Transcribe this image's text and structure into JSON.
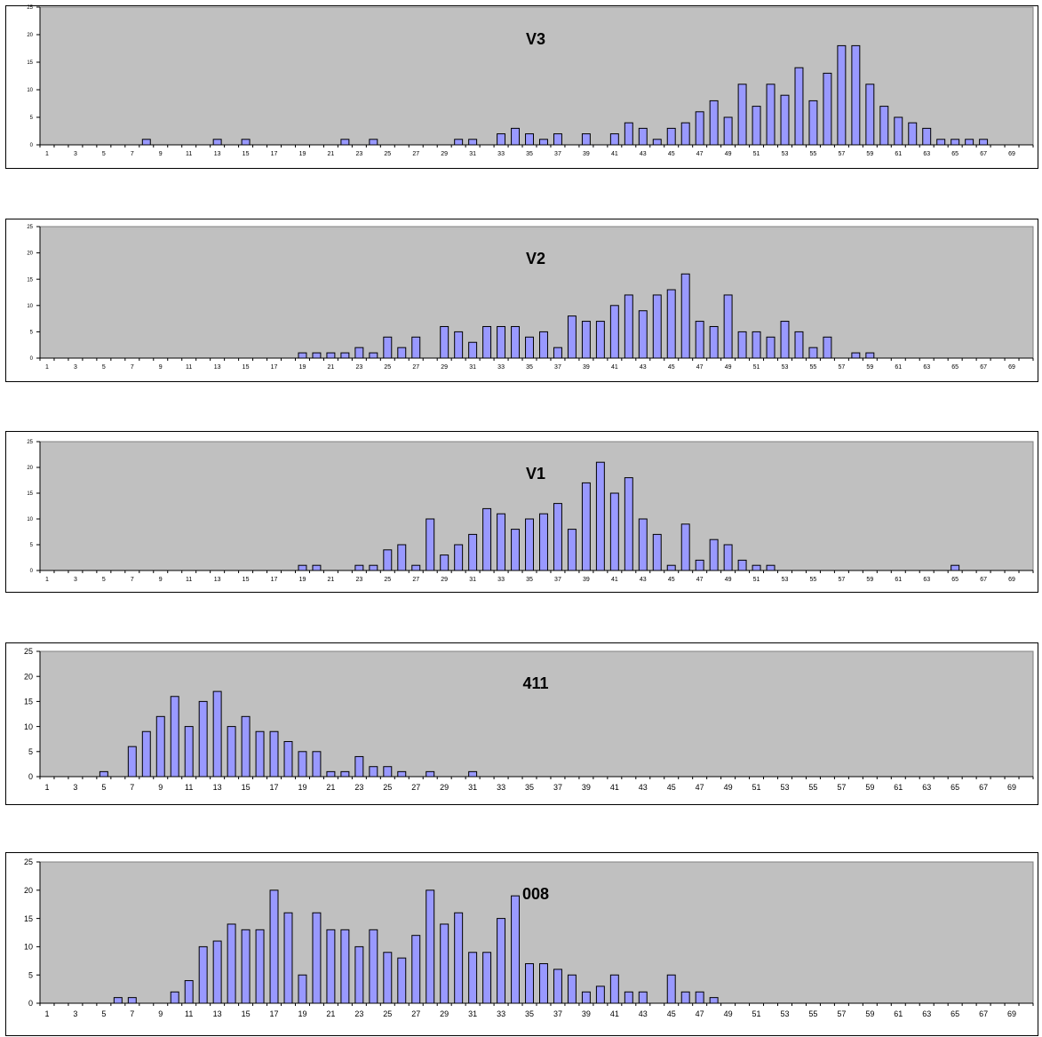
{
  "colors": {
    "plot_bg": "#c0c0c0",
    "bar_fill": "#9999ff",
    "bar_stroke": "#000000",
    "frame": "#000000"
  },
  "chart_data": [
    {
      "type": "bar",
      "title": "V3",
      "xlabel": "",
      "ylabel": "",
      "ylim": [
        0,
        25
      ],
      "yticks": [
        "0",
        "5",
        "10",
        "15",
        "20",
        "25"
      ],
      "categories": [
        1,
        2,
        3,
        4,
        5,
        6,
        7,
        8,
        9,
        10,
        11,
        12,
        13,
        14,
        15,
        16,
        17,
        18,
        19,
        20,
        21,
        22,
        23,
        24,
        25,
        26,
        27,
        28,
        29,
        30,
        31,
        32,
        33,
        34,
        35,
        36,
        37,
        38,
        39,
        40,
        41,
        42,
        43,
        44,
        45,
        46,
        47,
        48,
        49,
        50,
        51,
        52,
        53,
        54,
        55,
        56,
        57,
        58,
        59,
        60,
        61,
        62,
        63,
        64,
        65,
        66,
        67,
        68,
        69,
        70
      ],
      "tick_labels": [
        "1",
        "3",
        "5",
        "7",
        "9",
        "11",
        "13",
        "15",
        "17",
        "19",
        "21",
        "23",
        "25",
        "27",
        "29",
        "31",
        "33",
        "35",
        "37",
        "39",
        "41",
        "43",
        "45",
        "47",
        "49",
        "51",
        "53",
        "55",
        "57",
        "59",
        "61",
        "63",
        "65",
        "67",
        "69"
      ],
      "values": [
        0,
        0,
        0,
        0,
        0,
        0,
        0,
        1,
        0,
        0,
        0,
        0,
        1,
        0,
        1,
        0,
        0,
        0,
        0,
        0,
        0,
        1,
        0,
        1,
        0,
        0,
        0,
        0,
        0,
        1,
        1,
        0,
        2,
        3,
        2,
        1,
        2,
        0,
        2,
        0,
        2,
        4,
        3,
        1,
        3,
        4,
        6,
        8,
        5,
        11,
        7,
        11,
        9,
        14,
        8,
        13,
        18,
        18,
        11,
        7,
        5,
        4,
        3,
        1,
        1,
        1,
        1,
        0,
        0,
        0
      ],
      "grid": false,
      "legend": "none"
    },
    {
      "type": "bar",
      "title": "V2",
      "xlabel": "",
      "ylabel": "",
      "ylim": [
        0,
        25
      ],
      "yticks": [
        "0",
        "5",
        "10",
        "15",
        "20",
        "25"
      ],
      "categories": [
        1,
        2,
        3,
        4,
        5,
        6,
        7,
        8,
        9,
        10,
        11,
        12,
        13,
        14,
        15,
        16,
        17,
        18,
        19,
        20,
        21,
        22,
        23,
        24,
        25,
        26,
        27,
        28,
        29,
        30,
        31,
        32,
        33,
        34,
        35,
        36,
        37,
        38,
        39,
        40,
        41,
        42,
        43,
        44,
        45,
        46,
        47,
        48,
        49,
        50,
        51,
        52,
        53,
        54,
        55,
        56,
        57,
        58,
        59,
        60,
        61,
        62,
        63,
        64,
        65,
        66,
        67,
        68,
        69,
        70
      ],
      "tick_labels": [
        "1",
        "3",
        "5",
        "7",
        "9",
        "11",
        "13",
        "15",
        "17",
        "19",
        "21",
        "23",
        "25",
        "27",
        "29",
        "31",
        "33",
        "35",
        "37",
        "39",
        "41",
        "43",
        "45",
        "47",
        "49",
        "51",
        "53",
        "55",
        "57",
        "59",
        "61",
        "63",
        "65",
        "67",
        "69"
      ],
      "values": [
        0,
        0,
        0,
        0,
        0,
        0,
        0,
        0,
        0,
        0,
        0,
        0,
        0,
        0,
        0,
        0,
        0,
        0,
        1,
        1,
        1,
        1,
        2,
        1,
        4,
        2,
        4,
        0,
        6,
        5,
        3,
        6,
        6,
        6,
        4,
        5,
        2,
        8,
        7,
        7,
        10,
        12,
        9,
        12,
        13,
        16,
        7,
        6,
        12,
        5,
        5,
        4,
        7,
        5,
        2,
        4,
        0,
        1,
        1,
        0,
        0,
        0,
        0,
        0,
        0,
        0,
        0,
        0,
        0,
        0
      ],
      "grid": false,
      "legend": "none"
    },
    {
      "type": "bar",
      "title": "V1",
      "xlabel": "",
      "ylabel": "",
      "ylim": [
        0,
        25
      ],
      "yticks": [
        "0",
        "5",
        "10",
        "15",
        "20",
        "25"
      ],
      "categories": [
        1,
        2,
        3,
        4,
        5,
        6,
        7,
        8,
        9,
        10,
        11,
        12,
        13,
        14,
        15,
        16,
        17,
        18,
        19,
        20,
        21,
        22,
        23,
        24,
        25,
        26,
        27,
        28,
        29,
        30,
        31,
        32,
        33,
        34,
        35,
        36,
        37,
        38,
        39,
        40,
        41,
        42,
        43,
        44,
        45,
        46,
        47,
        48,
        49,
        50,
        51,
        52,
        53,
        54,
        55,
        56,
        57,
        58,
        59,
        60,
        61,
        62,
        63,
        64,
        65,
        66,
        67,
        68,
        69,
        70
      ],
      "tick_labels": [
        "1",
        "3",
        "5",
        "7",
        "9",
        "11",
        "13",
        "15",
        "17",
        "19",
        "21",
        "23",
        "25",
        "27",
        "29",
        "31",
        "33",
        "35",
        "37",
        "39",
        "41",
        "43",
        "45",
        "47",
        "49",
        "51",
        "53",
        "55",
        "57",
        "59",
        "61",
        "63",
        "65",
        "67",
        "69"
      ],
      "values": [
        0,
        0,
        0,
        0,
        0,
        0,
        0,
        0,
        0,
        0,
        0,
        0,
        0,
        0,
        0,
        0,
        0,
        0,
        1,
        1,
        0,
        0,
        1,
        1,
        4,
        5,
        1,
        10,
        3,
        5,
        7,
        12,
        11,
        8,
        10,
        11,
        13,
        8,
        17,
        21,
        15,
        18,
        10,
        7,
        1,
        9,
        2,
        6,
        5,
        2,
        1,
        1,
        0,
        0,
        0,
        0,
        0,
        0,
        0,
        0,
        0,
        0,
        0,
        0,
        1,
        0,
        0,
        0,
        0,
        0
      ],
      "grid": false,
      "legend": "none"
    },
    {
      "type": "bar",
      "title": "411",
      "xlabel": "",
      "ylabel": "",
      "ylim": [
        0,
        25
      ],
      "yticks": [
        "0",
        "5",
        "10",
        "15",
        "20",
        "25"
      ],
      "categories": [
        1,
        2,
        3,
        4,
        5,
        6,
        7,
        8,
        9,
        10,
        11,
        12,
        13,
        14,
        15,
        16,
        17,
        18,
        19,
        20,
        21,
        22,
        23,
        24,
        25,
        26,
        27,
        28,
        29,
        30,
        31,
        32,
        33,
        34,
        35,
        36,
        37,
        38,
        39,
        40,
        41,
        42,
        43,
        44,
        45,
        46,
        47,
        48,
        49,
        50,
        51,
        52,
        53,
        54,
        55,
        56,
        57,
        58,
        59,
        60,
        61,
        62,
        63,
        64,
        65,
        66,
        67,
        68,
        69,
        70
      ],
      "tick_labels": [
        "1",
        "3",
        "5",
        "7",
        "9",
        "11",
        "13",
        "15",
        "17",
        "19",
        "21",
        "23",
        "25",
        "27",
        "29",
        "31",
        "33",
        "35",
        "37",
        "39",
        "41",
        "43",
        "45",
        "47",
        "49",
        "51",
        "53",
        "55",
        "57",
        "59",
        "61",
        "63",
        "65",
        "67",
        "69"
      ],
      "values": [
        0,
        0,
        0,
        0,
        1,
        0,
        6,
        9,
        12,
        16,
        10,
        15,
        17,
        10,
        12,
        9,
        9,
        7,
        5,
        5,
        1,
        1,
        4,
        2,
        2,
        1,
        0,
        1,
        0,
        0,
        1,
        0,
        0,
        0,
        0,
        0,
        0,
        0,
        0,
        0,
        0,
        0,
        0,
        0,
        0,
        0,
        0,
        0,
        0,
        0,
        0,
        0,
        0,
        0,
        0,
        0,
        0,
        0,
        0,
        0,
        0,
        0,
        0,
        0,
        0,
        0,
        0,
        0,
        0,
        0
      ],
      "grid": false,
      "legend": "none"
    },
    {
      "type": "bar",
      "title": "008",
      "xlabel": "",
      "ylabel": "",
      "ylim": [
        0,
        25
      ],
      "yticks": [
        "0",
        "5",
        "10",
        "15",
        "20",
        "25"
      ],
      "categories": [
        1,
        2,
        3,
        4,
        5,
        6,
        7,
        8,
        9,
        10,
        11,
        12,
        13,
        14,
        15,
        16,
        17,
        18,
        19,
        20,
        21,
        22,
        23,
        24,
        25,
        26,
        27,
        28,
        29,
        30,
        31,
        32,
        33,
        34,
        35,
        36,
        37,
        38,
        39,
        40,
        41,
        42,
        43,
        44,
        45,
        46,
        47,
        48,
        49,
        50,
        51,
        52,
        53,
        54,
        55,
        56,
        57,
        58,
        59,
        60,
        61,
        62,
        63,
        64,
        65,
        66,
        67,
        68,
        69,
        70
      ],
      "tick_labels": [
        "1",
        "3",
        "5",
        "7",
        "9",
        "11",
        "13",
        "15",
        "17",
        "19",
        "21",
        "23",
        "25",
        "27",
        "29",
        "31",
        "33",
        "35",
        "37",
        "39",
        "41",
        "43",
        "45",
        "47",
        "49",
        "51",
        "53",
        "55",
        "57",
        "59",
        "61",
        "63",
        "65",
        "67",
        "69"
      ],
      "values": [
        0,
        0,
        0,
        0,
        0,
        1,
        1,
        0,
        0,
        2,
        4,
        10,
        11,
        14,
        13,
        13,
        20,
        16,
        5,
        16,
        13,
        13,
        10,
        13,
        9,
        8,
        12,
        20,
        14,
        16,
        9,
        9,
        15,
        19,
        7,
        7,
        6,
        5,
        2,
        3,
        5,
        2,
        2,
        0,
        5,
        2,
        2,
        1,
        0,
        0,
        0,
        0,
        0,
        0,
        0,
        0,
        0,
        0,
        0,
        0,
        0,
        0,
        0,
        0,
        0,
        0,
        0,
        0,
        0,
        0
      ],
      "grid": false,
      "legend": "none"
    }
  ]
}
